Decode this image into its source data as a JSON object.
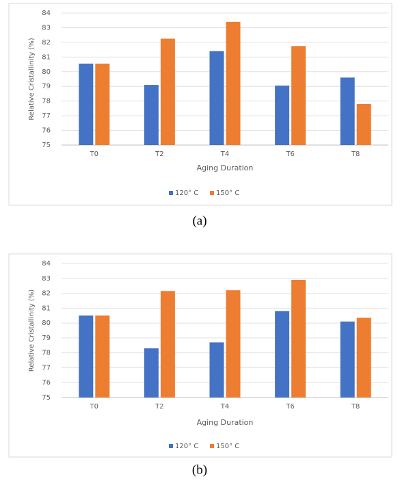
{
  "chart_data": [
    {
      "type": "bar",
      "caption": "(a)",
      "x_label": "Aging Duration",
      "y_label": "Relative Cristallinity (%)",
      "categories": [
        "T0",
        "T2",
        "T4",
        "T6",
        "T8"
      ],
      "series": [
        {
          "name": "120° C",
          "color": "#4472c4",
          "values": [
            80.55,
            79.1,
            81.4,
            79.05,
            79.6
          ]
        },
        {
          "name": "150° C",
          "color": "#ed7d31",
          "values": [
            80.55,
            82.25,
            83.4,
            81.75,
            77.8
          ]
        }
      ],
      "ylim": [
        75,
        84
      ],
      "yticks": [
        75,
        76,
        77,
        78,
        79,
        80,
        81,
        82,
        83,
        84
      ],
      "grid": true,
      "legend": "bottom"
    },
    {
      "type": "bar",
      "caption": "(b)",
      "x_label": "Aging Duration",
      "y_label": "Relative Cristallinity (%)",
      "categories": [
        "T0",
        "T2",
        "T4",
        "T6",
        "T8"
      ],
      "series": [
        {
          "name": "120° C",
          "color": "#4472c4",
          "values": [
            80.5,
            78.3,
            78.7,
            80.8,
            80.1
          ]
        },
        {
          "name": "150° C",
          "color": "#ed7d31",
          "values": [
            80.5,
            82.15,
            82.2,
            82.9,
            80.35
          ]
        }
      ],
      "ylim": [
        75,
        84
      ],
      "yticks": [
        75,
        76,
        77,
        78,
        79,
        80,
        81,
        82,
        83,
        84
      ],
      "grid": true,
      "legend": "bottom"
    }
  ]
}
